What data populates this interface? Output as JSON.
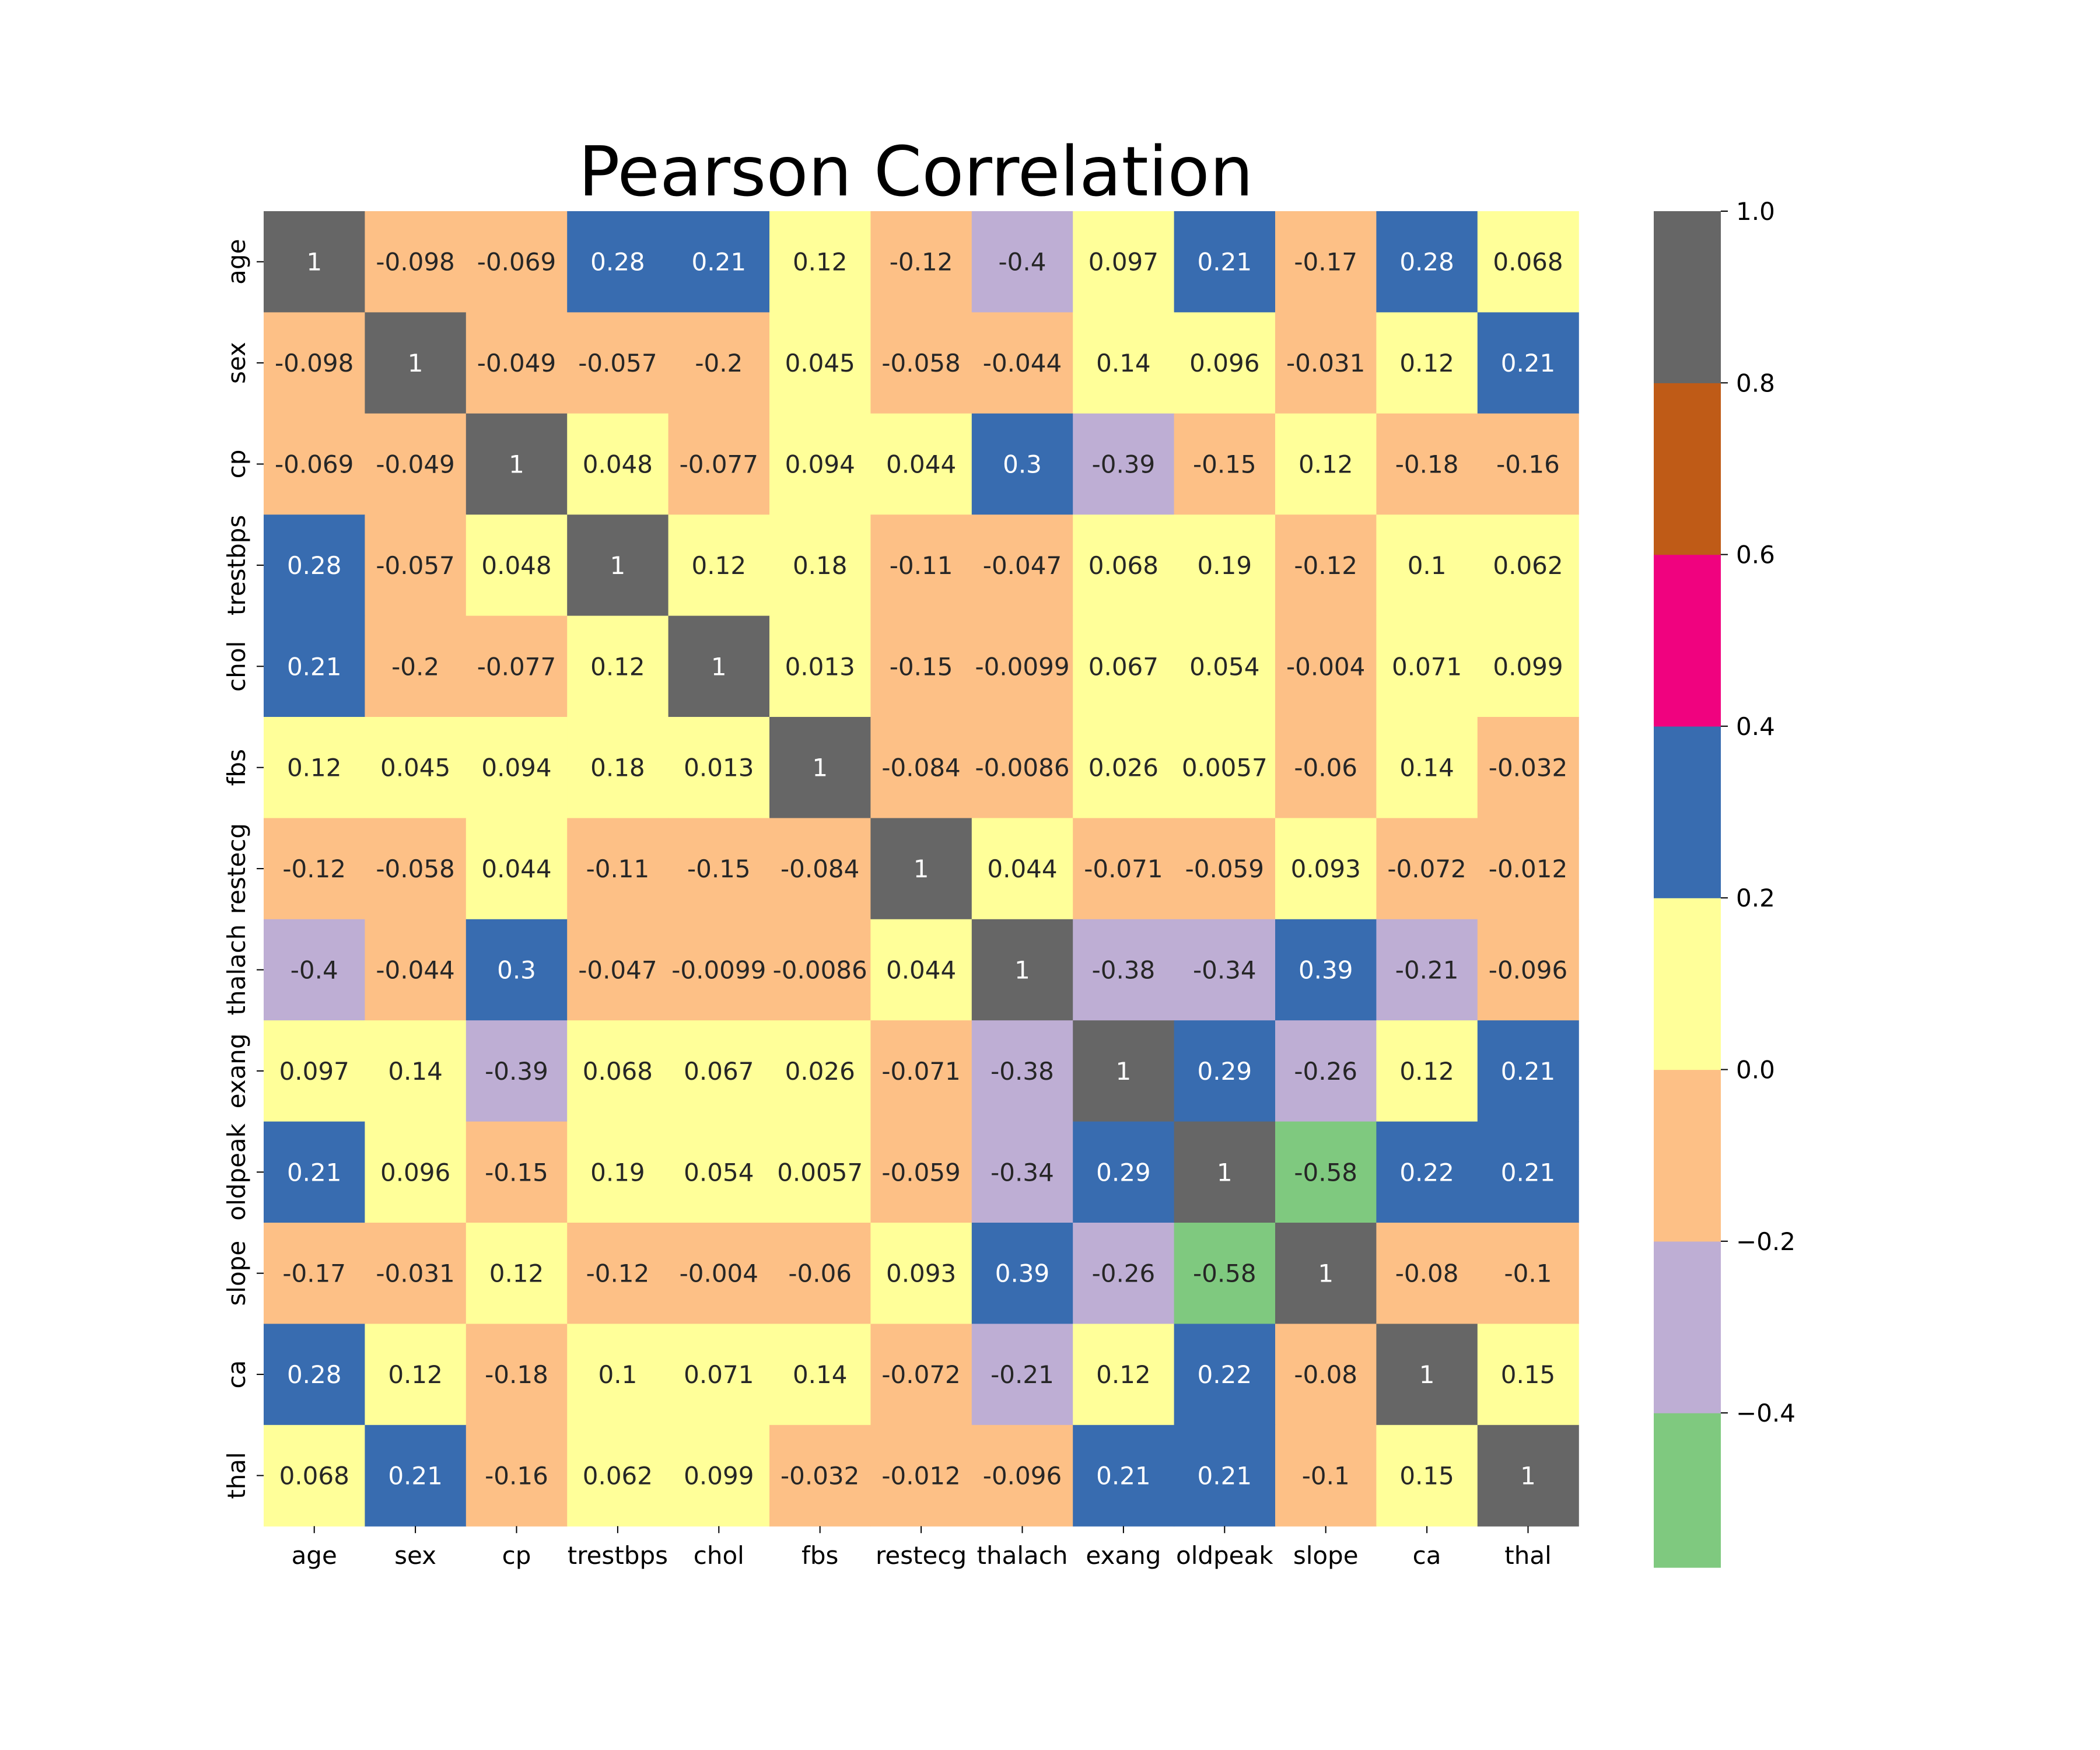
{
  "chart_data": {
    "type": "heatmap",
    "title": "Pearson Correlation",
    "labels": [
      "age",
      "sex",
      "cp",
      "trestbps",
      "chol",
      "fbs",
      "restecg",
      "thalach",
      "exang",
      "oldpeak",
      "slope",
      "ca",
      "thal"
    ],
    "values": [
      [
        1,
        -0.098,
        -0.069,
        0.28,
        0.21,
        0.12,
        -0.12,
        -0.4,
        0.097,
        0.21,
        -0.17,
        0.28,
        0.068
      ],
      [
        -0.098,
        1,
        -0.049,
        -0.057,
        -0.2,
        0.045,
        -0.058,
        -0.044,
        0.14,
        0.096,
        -0.031,
        0.12,
        0.21
      ],
      [
        -0.069,
        -0.049,
        1,
        0.048,
        -0.077,
        0.094,
        0.044,
        0.3,
        -0.39,
        -0.15,
        0.12,
        -0.18,
        -0.16
      ],
      [
        0.28,
        -0.057,
        0.048,
        1,
        0.12,
        0.18,
        -0.11,
        -0.047,
        0.068,
        0.19,
        -0.12,
        0.1,
        0.062
      ],
      [
        0.21,
        -0.2,
        -0.077,
        0.12,
        1,
        0.013,
        -0.15,
        -0.0099,
        0.067,
        0.054,
        -0.004,
        0.071,
        0.099
      ],
      [
        0.12,
        0.045,
        0.094,
        0.18,
        0.013,
        1,
        -0.084,
        -0.0086,
        0.026,
        0.0057,
        -0.06,
        0.14,
        -0.032
      ],
      [
        -0.12,
        -0.058,
        0.044,
        -0.11,
        -0.15,
        -0.084,
        1,
        0.044,
        -0.071,
        -0.059,
        0.093,
        -0.072,
        -0.012
      ],
      [
        -0.4,
        -0.044,
        0.3,
        -0.047,
        -0.0099,
        -0.0086,
        0.044,
        1,
        -0.38,
        -0.34,
        0.39,
        -0.21,
        -0.096
      ],
      [
        0.097,
        0.14,
        -0.39,
        0.068,
        0.067,
        0.026,
        -0.071,
        -0.38,
        1,
        0.29,
        -0.26,
        0.12,
        0.21
      ],
      [
        0.21,
        0.096,
        -0.15,
        0.19,
        0.054,
        0.0057,
        -0.059,
        -0.34,
        0.29,
        1,
        -0.58,
        0.22,
        0.21
      ],
      [
        -0.17,
        -0.031,
        0.12,
        -0.12,
        -0.004,
        -0.06,
        0.093,
        0.39,
        -0.26,
        -0.58,
        1,
        -0.08,
        -0.1
      ],
      [
        0.28,
        0.12,
        -0.18,
        0.1,
        0.071,
        0.14,
        -0.072,
        -0.21,
        0.12,
        0.22,
        -0.08,
        1,
        0.15
      ],
      [
        0.068,
        0.21,
        -0.16,
        0.062,
        0.099,
        -0.032,
        -0.012,
        -0.096,
        0.21,
        0.21,
        -0.1,
        0.15,
        1
      ]
    ],
    "colorbar": {
      "vmin": -0.58,
      "vmax": 1.0,
      "ticks": [
        1.0,
        0.8,
        0.6,
        0.4,
        0.2,
        0.0,
        -0.2,
        -0.4
      ],
      "tick_labels": [
        "1.0",
        "0.8",
        "0.6",
        "0.4",
        "0.2",
        "0.0",
        "−0.2",
        "−0.4"
      ],
      "bins": [
        {
          "from": -0.58,
          "to": -0.4,
          "color": "#7fc97f"
        },
        {
          "from": -0.4,
          "to": -0.2,
          "color": "#beaed4"
        },
        {
          "from": -0.2,
          "to": 0.0,
          "color": "#fdc086"
        },
        {
          "from": 0.0,
          "to": 0.2,
          "color": "#ffff99"
        },
        {
          "from": 0.2,
          "to": 0.4,
          "color": "#386cb0"
        },
        {
          "from": 0.4,
          "to": 0.6,
          "color": "#f0027f"
        },
        {
          "from": 0.6,
          "to": 0.8,
          "color": "#bf5b17"
        },
        {
          "from": 0.8,
          "to": 1.0,
          "color": "#666666"
        }
      ],
      "light_text_bins": [
        4,
        5,
        6,
        7
      ]
    }
  }
}
